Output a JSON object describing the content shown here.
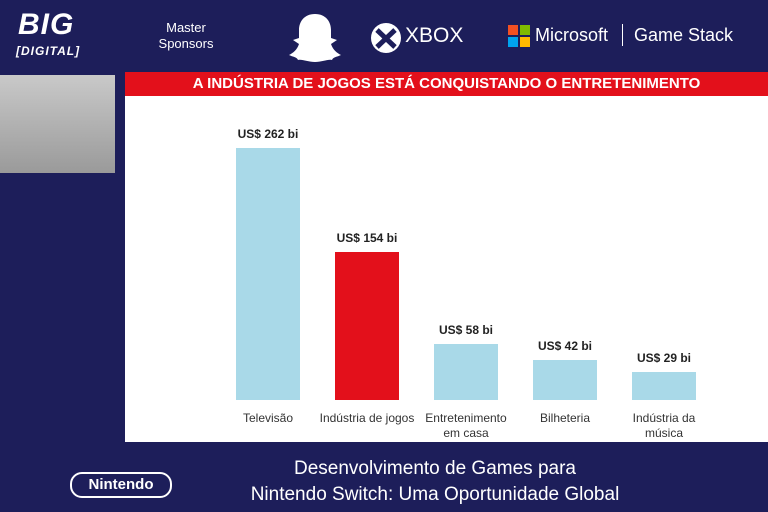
{
  "header": {
    "logo": "BIG",
    "logo_sub": "[DIGITAL]",
    "sponsor_label": "Master Sponsors",
    "sponsors": [
      "XBOX",
      "Microsoft",
      "Game Stack"
    ]
  },
  "chart_data": {
    "type": "bar",
    "title": "A INDÚSTRIA DE JOGOS ESTÁ CONQUISTANDO O ENTRETENIMENTO",
    "categories": [
      "Televisão",
      "Indústria de jogos",
      "Entretenimento em casa",
      "Bilheteria",
      "Indústria da música"
    ],
    "values": [
      262,
      154,
      58,
      42,
      29
    ],
    "value_labels": [
      "US$ 262 bi",
      "US$ 154 bi",
      "US$ 58 bi",
      "US$ 42 bi",
      "US$ 29 bi"
    ],
    "colors": [
      "#a9d9e8",
      "#e3101b",
      "#a9d9e8",
      "#a9d9e8",
      "#a9d9e8"
    ]
  },
  "footer": {
    "logo": "Nintendo",
    "title_lines": [
      "Desenvolvimento de Games para",
      "Nintendo Switch: Uma Oportunidade Global"
    ]
  }
}
